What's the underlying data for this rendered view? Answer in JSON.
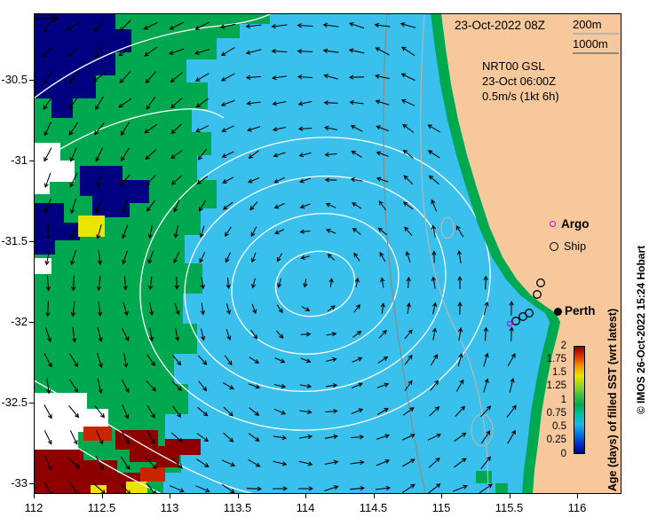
{
  "annotations": {
    "datetime": "23-Oct-2022 08Z",
    "isobath_200": "200m",
    "isobath_1000": "1000m",
    "model_line1": "NRT00 GSL",
    "model_line2": "23-Oct 06:00Z",
    "model_line3": "0.5m/s (1kt 6h)",
    "argo_label": "Argo",
    "ship_label": "Ship",
    "city_label": "Perth",
    "copyright": "© IMOS 26-Oct-2022 15:24 Hobart"
  },
  "colorbar": {
    "title": "Age (days) of filled SST (wrt latest)",
    "ticks": [
      "2",
      "1.75",
      "1.5",
      "1.25",
      "1",
      "0.75",
      "0.5",
      "0.25",
      "0"
    ]
  },
  "axes": {
    "x_ticks": [
      "112",
      "112.5",
      "113",
      "113.5",
      "114",
      "114.5",
      "115",
      "115.5",
      "116"
    ],
    "y_ticks": [
      "-30.5",
      "-31",
      "-31.5",
      "-32",
      "-32.5",
      "-33"
    ]
  },
  "colors": {
    "ocean": "#3ac0ec",
    "land": "#f6c89c",
    "green": "#00a84f",
    "navy": "#000080",
    "dark_red": "#8e0000",
    "red": "#c92500",
    "yellow": "#e9e400",
    "argo": "#e000e0",
    "isobath_200": "#b7b7b7",
    "isobath_1000": "#8a8a8a",
    "colorbar_stops": [
      "#000083",
      "#0032c8",
      "#0077e0",
      "#22b4e8",
      "#00c2a8",
      "#00a851",
      "#44c23c",
      "#a4d320",
      "#e9e400",
      "#f59300",
      "#dc3200",
      "#8e0000"
    ]
  }
}
